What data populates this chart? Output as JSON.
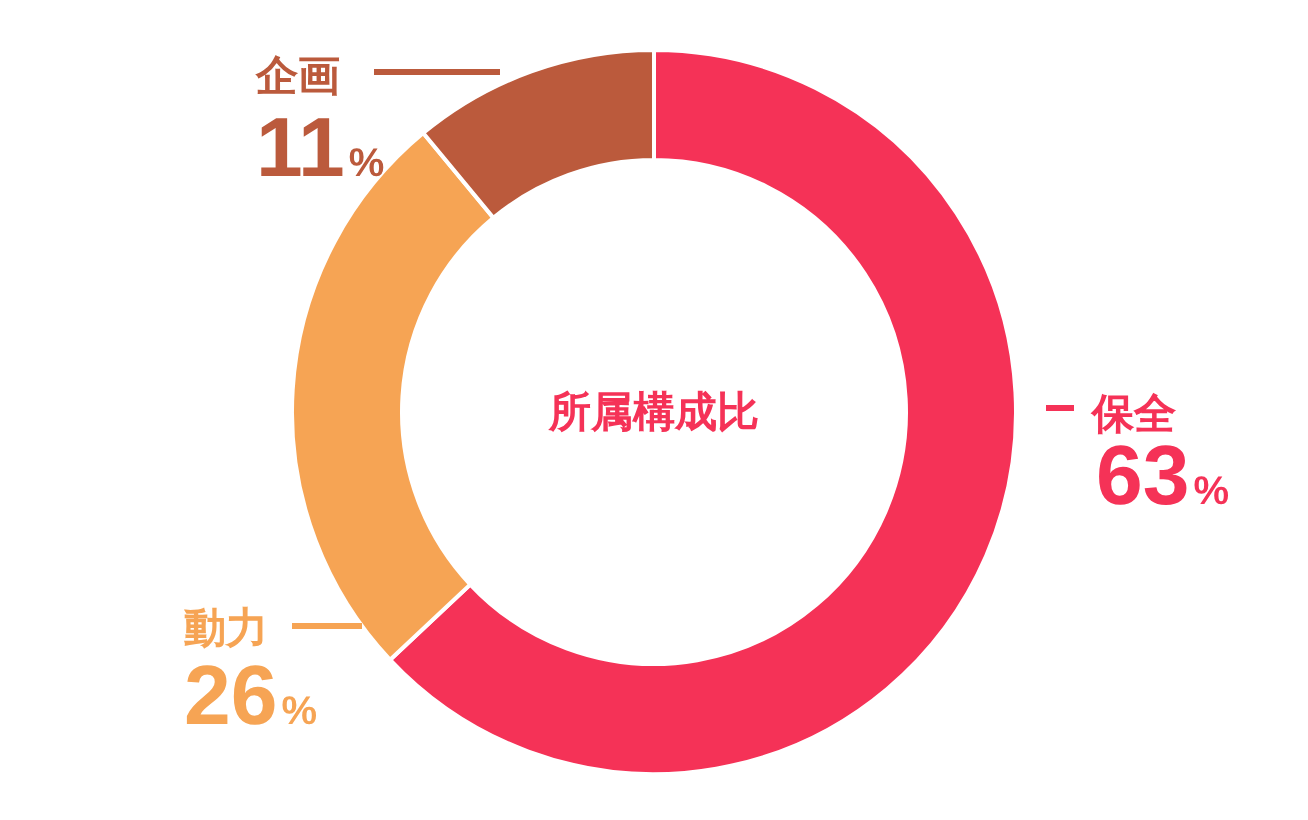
{
  "chart_data": {
    "type": "donut",
    "title": "所属構成比",
    "categories": [
      "保全",
      "動力",
      "企画"
    ],
    "values": [
      63,
      26,
      11
    ],
    "value_labels": [
      "63%",
      "26%",
      "11%"
    ],
    "colors": [
      "#f53257",
      "#f6a454",
      "#bb5a3c"
    ]
  }
}
